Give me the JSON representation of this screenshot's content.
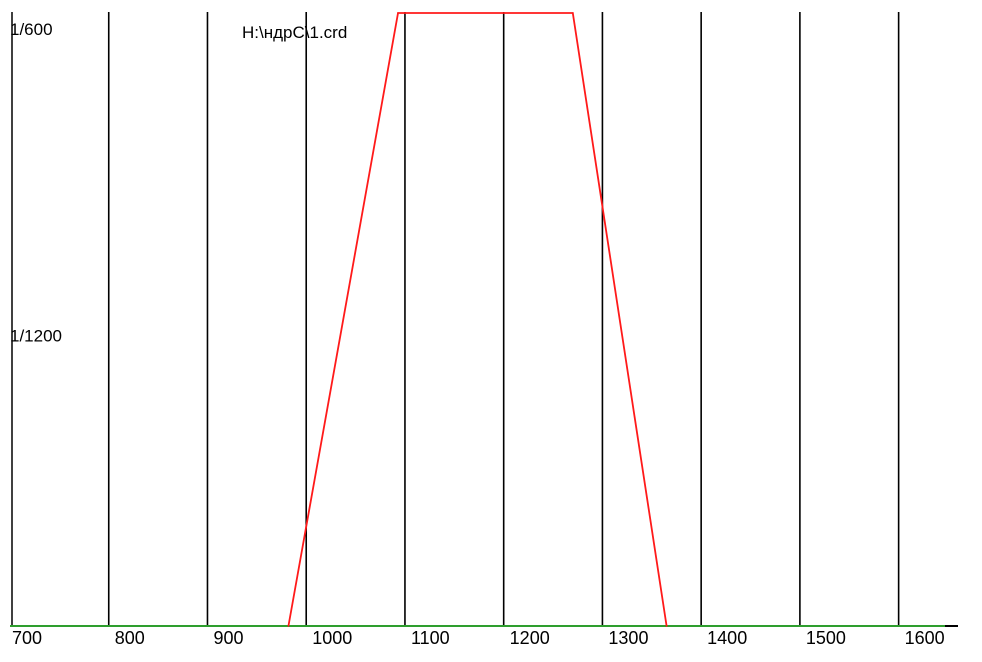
{
  "chart_data": {
    "type": "line",
    "title": "H:\\ндрС\\1.crd",
    "xlabel": "",
    "ylabel": "",
    "xlim": [
      700,
      1650
    ],
    "x_ticks": [
      700,
      800,
      900,
      1000,
      1100,
      1200,
      1300,
      1400,
      1500,
      1600
    ],
    "y_ticks": [
      {
        "value": 1,
        "label": "1/600"
      },
      {
        "value": 0.5,
        "label": "1/1200"
      }
    ],
    "grid": true,
    "x_axis_color": "#2e9e2e",
    "series": [
      {
        "color": "#ff1a1a",
        "points": [
          {
            "x": 982,
            "y": 0
          },
          {
            "x": 1093,
            "y": 1
          },
          {
            "x": 1270,
            "y": 1
          },
          {
            "x": 1365,
            "y": 0
          }
        ]
      }
    ]
  }
}
